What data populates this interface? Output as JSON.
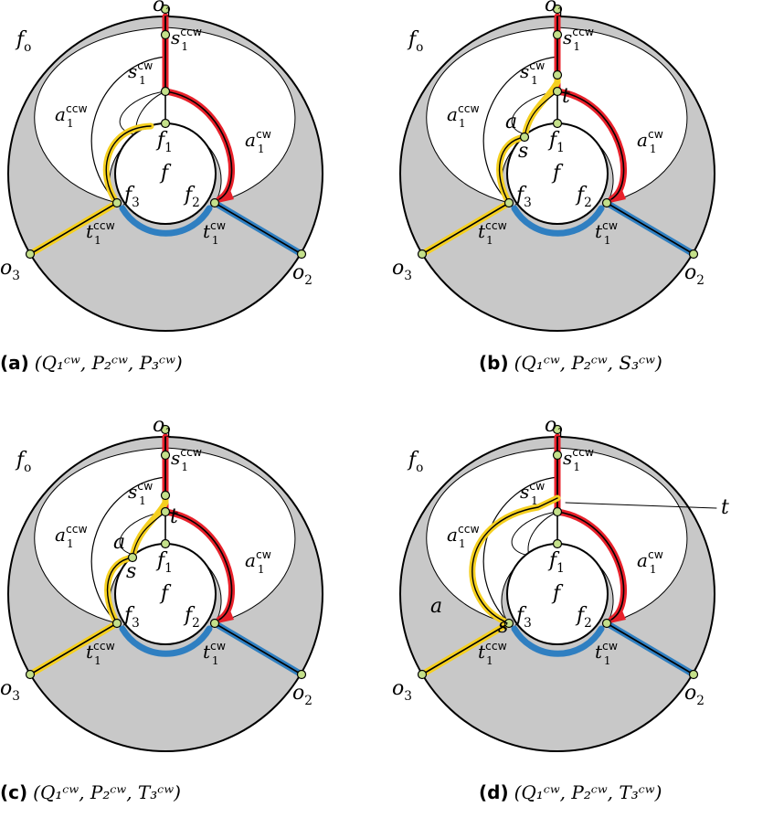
{
  "panels": [
    {
      "tag": "(a)",
      "tuple": "(Q₁ᶜʷ, P₂ᶜʷ, P₃ᶜʷ)",
      "variant": "a"
    },
    {
      "tag": "(b)",
      "tuple": "(Q₁ᶜʷ, P₂ᶜʷ, S₃ᶜʷ)",
      "variant": "b"
    },
    {
      "tag": "(c)",
      "tuple": "(Q₁ᶜʷ, P₂ᶜʷ, T₃ᶜʷ)",
      "variant": "c"
    },
    {
      "tag": "(d)",
      "tuple": "(Q₁ᶜʷ, P₂ᶜʷ, T₃ᶜʷ)",
      "variant": "d"
    }
  ],
  "labels": {
    "o1": "o1",
    "o2": "o2",
    "o3": "o3",
    "f": "f",
    "fo": "fo",
    "f1": "f1",
    "f2": "f2",
    "f3": "f3",
    "s1cw": "s1cw",
    "s1ccw": "s1ccw",
    "a1cw": "a1cw",
    "a1ccw": "a1ccw",
    "t1cw": "t1cw",
    "t1ccw": "t1ccw",
    "a": "a",
    "s": "s",
    "t": "t"
  },
  "colors": {
    "region": "#c8c8c8",
    "red": "#e8202a",
    "yellow": "#f5d020",
    "blue": "#2f7fc1",
    "vertex": "#c4e08a"
  }
}
